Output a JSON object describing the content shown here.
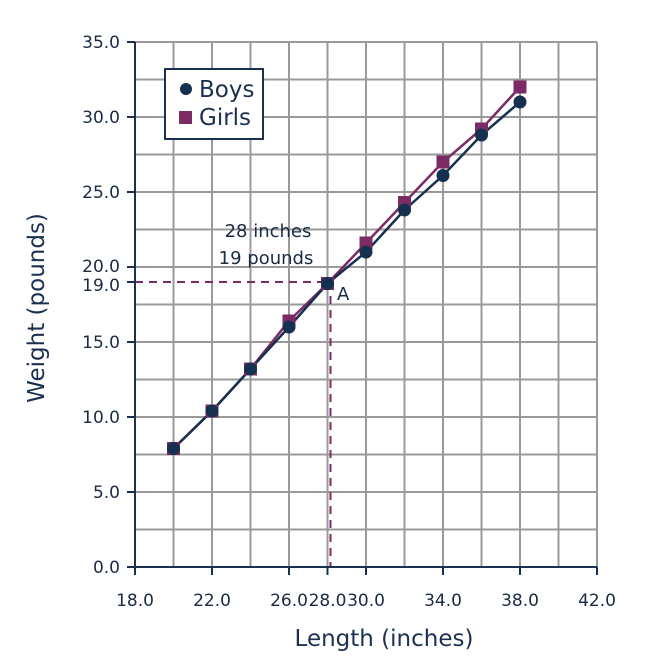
{
  "chart_data": {
    "type": "line",
    "xlabel": "Length (inches)",
    "ylabel": "Weight (pounds)",
    "xlim": [
      18,
      42
    ],
    "ylim": [
      0,
      35
    ],
    "x_ticks": [
      "18.0",
      "22.0",
      "26.0",
      "28.0",
      "30.0",
      "34.0",
      "38.0",
      "42.0"
    ],
    "x_tick_values": [
      18,
      22,
      26,
      28,
      30,
      34,
      38,
      42
    ],
    "y_ticks": [
      "0.0",
      "5.0",
      "10.0",
      "15.0",
      "19.0",
      "20.0",
      "25.0",
      "30.0",
      "35.0"
    ],
    "y_tick_values": [
      0,
      5,
      10,
      15,
      19,
      20,
      25,
      30,
      35
    ],
    "grid": true,
    "legend_position": "top-left",
    "series": [
      {
        "name": "Boys",
        "marker": "circle",
        "color": "#16304f",
        "x": [
          20,
          22,
          24,
          26,
          28,
          30,
          32,
          34,
          36,
          38
        ],
        "y": [
          7.9,
          10.4,
          13.2,
          16.0,
          18.9,
          21.0,
          23.8,
          26.1,
          28.8,
          31.0
        ]
      },
      {
        "name": "Girls",
        "marker": "square",
        "color": "#7d2b64",
        "x": [
          20,
          22,
          24,
          26,
          28,
          30,
          32,
          34,
          36,
          38
        ],
        "y": [
          7.9,
          10.4,
          13.2,
          16.4,
          18.9,
          21.6,
          24.3,
          27.0,
          29.2,
          32.0
        ]
      }
    ],
    "annotation": {
      "point_label": "A",
      "x": 28,
      "y": 19,
      "line1": "28 inches",
      "line2": "19 pounds",
      "guide_color": "#7d2b64"
    }
  }
}
